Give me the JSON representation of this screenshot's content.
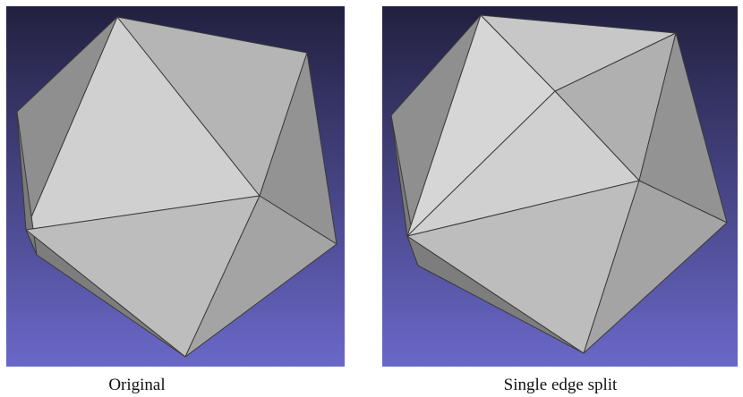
{
  "panels": [
    {
      "caption": "Original",
      "colors": {
        "bg_top": "#22203f",
        "bg_bottom": "#6a68c8",
        "edge": "#3a3a3a"
      }
    },
    {
      "caption": "Single edge split",
      "colors": {
        "bg_top": "#22203f",
        "bg_bottom": "#6a68c8",
        "edge": "#3a3a3a"
      }
    }
  ]
}
